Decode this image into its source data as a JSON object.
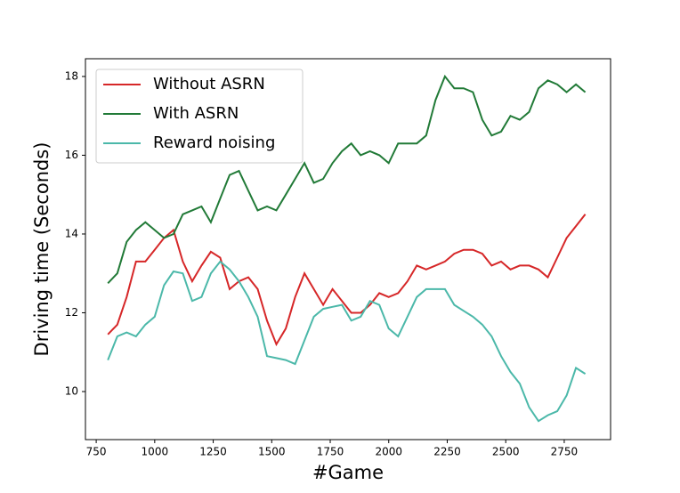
{
  "chart_data": {
    "type": "line",
    "xlabel": "#Game",
    "ylabel": "Driving time (Seconds)",
    "x": [
      800,
      840,
      880,
      920,
      960,
      1000,
      1040,
      1080,
      1120,
      1160,
      1200,
      1240,
      1280,
      1320,
      1360,
      1400,
      1440,
      1480,
      1520,
      1560,
      1600,
      1640,
      1680,
      1720,
      1760,
      1800,
      1840,
      1880,
      1920,
      1960,
      2000,
      2040,
      2080,
      2120,
      2160,
      2200,
      2240,
      2280,
      2320,
      2360,
      2400,
      2440,
      2480,
      2520,
      2560,
      2600,
      2640,
      2680,
      2720,
      2760,
      2800,
      2840
    ],
    "series": [
      {
        "name": "Without ASRN",
        "color": "#d62728",
        "values": [
          11.45,
          11.7,
          12.4,
          13.3,
          13.3,
          13.6,
          13.9,
          14.1,
          13.3,
          12.8,
          13.2,
          13.55,
          13.4,
          12.6,
          12.8,
          12.9,
          12.6,
          11.8,
          11.2,
          11.6,
          12.4,
          13.0,
          12.6,
          12.2,
          12.6,
          12.3,
          12.0,
          12.0,
          12.2,
          12.5,
          12.4,
          12.5,
          12.8,
          13.2,
          13.1,
          13.2,
          13.3,
          13.5,
          13.6,
          13.6,
          13.5,
          13.2,
          13.3,
          13.1,
          13.2,
          13.2,
          13.1,
          12.9,
          13.4,
          13.9,
          14.2,
          14.5
        ]
      },
      {
        "name": "With ASRN",
        "color": "#217a37",
        "values": [
          12.75,
          13.0,
          13.8,
          14.1,
          14.3,
          14.1,
          13.9,
          14.0,
          14.5,
          14.6,
          14.7,
          14.3,
          14.9,
          15.5,
          15.6,
          15.1,
          14.6,
          14.7,
          14.6,
          15.0,
          15.4,
          15.8,
          15.3,
          15.4,
          15.8,
          16.1,
          16.3,
          16.0,
          16.1,
          16.0,
          15.8,
          16.3,
          16.3,
          16.3,
          16.5,
          17.4,
          18.0,
          17.7,
          17.7,
          17.6,
          16.9,
          16.5,
          16.6,
          17.0,
          16.9,
          17.1,
          17.7,
          17.9,
          17.8,
          17.6,
          17.8,
          17.6
        ]
      },
      {
        "name": "Reward noising",
        "color": "#4bb8a9",
        "values": [
          10.8,
          11.4,
          11.5,
          11.4,
          11.7,
          11.9,
          12.7,
          13.05,
          13.0,
          12.3,
          12.4,
          13.0,
          13.3,
          13.1,
          12.8,
          12.4,
          11.9,
          10.9,
          10.85,
          10.8,
          10.7,
          11.3,
          11.9,
          12.1,
          12.15,
          12.2,
          11.8,
          11.9,
          12.3,
          12.2,
          11.6,
          11.4,
          11.9,
          12.4,
          12.6,
          12.6,
          12.6,
          12.2,
          12.05,
          11.9,
          11.7,
          11.4,
          10.9,
          10.5,
          10.2,
          9.6,
          9.25,
          9.4,
          9.5,
          9.9,
          10.6,
          10.45
        ]
      }
    ],
    "xlim": [
      704,
      2948
    ],
    "ylim": [
      8.78,
      18.45
    ],
    "xticks": [
      750,
      1000,
      1250,
      1500,
      1750,
      2000,
      2250,
      2500,
      2750
    ],
    "yticks": [
      10,
      12,
      14,
      16,
      18
    ],
    "legend": "upper left"
  }
}
